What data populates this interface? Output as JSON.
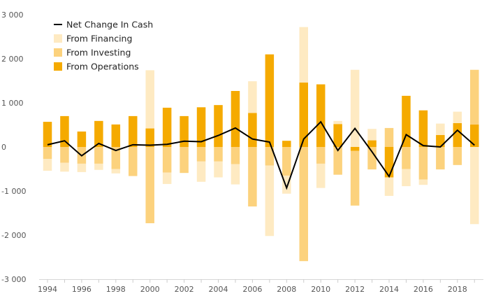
{
  "chart_data": {
    "type": "bar",
    "stacked": true,
    "title": "",
    "xlabel": "",
    "ylabel": "",
    "ylim": [
      -3000,
      3000
    ],
    "yticks": [
      3000,
      2000,
      1000,
      0,
      -1000,
      -2000,
      -3000
    ],
    "ytick_labels": [
      "3 000",
      "2 000",
      "1 000",
      "0",
      "-1 000",
      "-2 000",
      "-3 000"
    ],
    "x": [
      1994,
      1995,
      1996,
      1997,
      1998,
      1999,
      2000,
      2001,
      2002,
      2003,
      2004,
      2005,
      2006,
      2007,
      2008,
      2009,
      2010,
      2011,
      2012,
      2013,
      2014,
      2015,
      2016,
      2017,
      2018,
      2019
    ],
    "xtick_labels": [
      "1994",
      "1996",
      "1998",
      "2000",
      "2002",
      "2004",
      "2006",
      "2008",
      "2010",
      "2012",
      "2014",
      "2016",
      "2018"
    ],
    "legend_position": "top-left",
    "grid": false,
    "series": [
      {
        "name": "From Operations",
        "color": "#F5AA00",
        "values": [
          570,
          700,
          350,
          590,
          510,
          700,
          420,
          890,
          700,
          900,
          950,
          1270,
          770,
          2100,
          140,
          1460,
          1420,
          520,
          -90,
          150,
          -690,
          1160,
          830,
          270,
          540,
          510
        ]
      },
      {
        "name": "From Investing",
        "color": "#FCD27D",
        "values": [
          -270,
          -360,
          -380,
          -380,
          -500,
          -660,
          -1730,
          -580,
          -590,
          -330,
          -330,
          -390,
          -1350,
          -420,
          -650,
          -2590,
          -380,
          -630,
          -1240,
          -510,
          430,
          -500,
          -740,
          -510,
          -410,
          1240
        ]
      },
      {
        "name": "From Financing",
        "color": "#FEEAC2",
        "values": [
          -270,
          -200,
          -190,
          -140,
          -100,
          0,
          1320,
          -260,
          0,
          -460,
          -360,
          -460,
          720,
          -1600,
          -410,
          1260,
          -550,
          70,
          1750,
          260,
          -420,
          -390,
          -120,
          260,
          260,
          -1750
        ]
      },
      {
        "name": "Net Change In Cash",
        "color": "#000000",
        "type": "line",
        "values": [
          50,
          140,
          -200,
          80,
          -80,
          50,
          40,
          60,
          130,
          120,
          260,
          430,
          180,
          110,
          -930,
          180,
          570,
          -80,
          420,
          -110,
          -670,
          280,
          30,
          0,
          380,
          40
        ]
      }
    ]
  }
}
